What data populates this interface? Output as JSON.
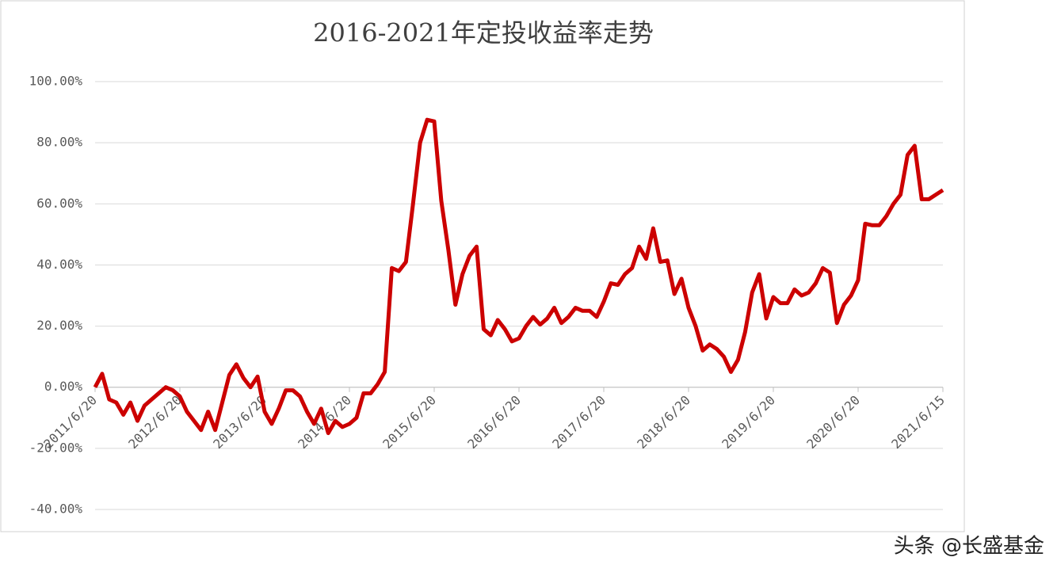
{
  "chart_data": {
    "type": "line",
    "title": "2016-2021年定投收益率走势",
    "categories": [
      "2011/6/20",
      null,
      null,
      null,
      null,
      null,
      null,
      null,
      null,
      null,
      null,
      null,
      "2012/6/20",
      null,
      null,
      null,
      null,
      null,
      null,
      null,
      null,
      null,
      null,
      null,
      "2013/6/20",
      null,
      null,
      null,
      null,
      null,
      null,
      null,
      null,
      null,
      null,
      null,
      "2014/6/20",
      null,
      null,
      null,
      null,
      null,
      null,
      null,
      null,
      null,
      null,
      null,
      "2015/6/20",
      null,
      null,
      null,
      null,
      null,
      null,
      null,
      null,
      null,
      null,
      null,
      "2016/6/20",
      null,
      null,
      null,
      null,
      null,
      null,
      null,
      null,
      null,
      null,
      null,
      "2017/6/20",
      null,
      null,
      null,
      null,
      null,
      null,
      null,
      null,
      null,
      null,
      null,
      "2018/6/20",
      null,
      null,
      null,
      null,
      null,
      null,
      null,
      null,
      null,
      null,
      null,
      "2019/6/20",
      null,
      null,
      null,
      null,
      null,
      null,
      null,
      null,
      null,
      null,
      null,
      "2020/6/20",
      null,
      null,
      null,
      null,
      null,
      null,
      null,
      null,
      null,
      null,
      null,
      "2021/6/15"
    ],
    "values": [
      0,
      4.4,
      -4,
      -5,
      -9,
      -5,
      -11,
      -6,
      -4,
      -2,
      0,
      -1,
      -3,
      -8,
      -11,
      -14,
      -8,
      -14,
      -5,
      4,
      7.5,
      3,
      0,
      3.5,
      -8,
      -12,
      -7,
      -1,
      -1,
      -3,
      -8,
      -12,
      -7,
      -15,
      -11,
      -13,
      -12,
      -10,
      -2,
      -2,
      1,
      5,
      39,
      38,
      41,
      60,
      80,
      87.5,
      87,
      61,
      45,
      27,
      37,
      43,
      46,
      19,
      17,
      22,
      19,
      15,
      16,
      20,
      23,
      20.5,
      22.5,
      26,
      21,
      23,
      26,
      25,
      25,
      23,
      28,
      34,
      33.5,
      37,
      39,
      46,
      42,
      52,
      41,
      41.5,
      30.5,
      35.5,
      26,
      20,
      12,
      14,
      12.5,
      10,
      5,
      9,
      18,
      31,
      37,
      22.5,
      29.5,
      27.5,
      27.5,
      32,
      30,
      31,
      34,
      39,
      37.5,
      21,
      27,
      30,
      35,
      53.5,
      53,
      53,
      56,
      60,
      63,
      76,
      79,
      61.5,
      61.5,
      63,
      64.5
    ],
    "color": "#cc0000",
    "ylim": [
      -40,
      100
    ],
    "yticks": [
      {
        "value": -40,
        "label": "-40.00%"
      },
      {
        "value": -20,
        "label": "-20.00%"
      },
      {
        "value": 0,
        "label": "0.00%"
      },
      {
        "value": 20,
        "label": "20.00%"
      },
      {
        "value": 40,
        "label": "40.00%"
      },
      {
        "value": 60,
        "label": "60.00%"
      },
      {
        "value": 80,
        "label": "80.00%"
      },
      {
        "value": 100,
        "label": "100.00%"
      }
    ],
    "grid": true
  },
  "watermark": "头条 @长盛基金"
}
